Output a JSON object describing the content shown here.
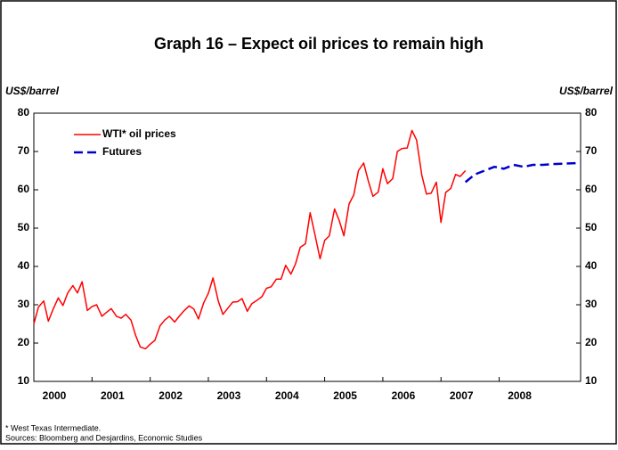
{
  "chart_data": {
    "type": "line",
    "title": "Graph 16 – Expect oil prices to remain high",
    "ylabel": "US$/barrel",
    "y2label": "US$/barrel",
    "legend": "top-left",
    "notes": [
      "* West Texas Intermediate.",
      "Sources: Bloomberg and Desjardins, Economic Studies"
    ],
    "xlim": [
      2000,
      2009.4
    ],
    "xticks": [
      2000,
      2001,
      2002,
      2003,
      2004,
      2005,
      2006,
      2007,
      2008
    ],
    "ylim": [
      10,
      80
    ],
    "yticks": [
      10,
      20,
      30,
      40,
      50,
      60,
      70,
      80
    ],
    "y2lim": [
      10,
      80
    ],
    "y2ticks": [
      10,
      20,
      30,
      40,
      50,
      60,
      70,
      80
    ],
    "series": [
      {
        "name": "WTI* oil prices",
        "color": "#ff0000",
        "x": [
          2000,
          2000.08,
          2000.17,
          2000.25,
          2000.33,
          2000.42,
          2000.5,
          2000.58,
          2000.67,
          2000.75,
          2000.83,
          2000.92,
          2001,
          2001.08,
          2001.17,
          2001.25,
          2001.33,
          2001.42,
          2001.5,
          2001.58,
          2001.67,
          2001.75,
          2001.83,
          2001.92,
          2002,
          2002.08,
          2002.17,
          2002.25,
          2002.33,
          2002.42,
          2002.5,
          2002.58,
          2002.67,
          2002.75,
          2002.83,
          2002.92,
          2003,
          2003.08,
          2003.17,
          2003.25,
          2003.33,
          2003.42,
          2003.5,
          2003.58,
          2003.67,
          2003.75,
          2003.83,
          2003.92,
          2004,
          2004.08,
          2004.17,
          2004.25,
          2004.33,
          2004.42,
          2004.5,
          2004.58,
          2004.67,
          2004.75,
          2004.83,
          2004.92,
          2005,
          2005.08,
          2005.17,
          2005.25,
          2005.33,
          2005.42,
          2005.5,
          2005.58,
          2005.67,
          2005.75,
          2005.83,
          2005.92,
          2006,
          2006.08,
          2006.17,
          2006.25,
          2006.33,
          2006.42,
          2006.5,
          2006.58,
          2006.67,
          2006.75,
          2006.83,
          2006.92,
          2007,
          2007.08,
          2007.17,
          2007.25,
          2007.33,
          2007.42
        ],
        "values": [
          25,
          29.4,
          31,
          25.7,
          28.8,
          31.8,
          29.8,
          33,
          35,
          33.1,
          36,
          28.5,
          29.5,
          30,
          27,
          28,
          29,
          27,
          26.5,
          27.5,
          26,
          22,
          19,
          18.5,
          19.7,
          20.7,
          24.5,
          26,
          27,
          25.5,
          27,
          28.4,
          29.7,
          28.9,
          26.3,
          30.5,
          33,
          37,
          31,
          27.5,
          29,
          30.7,
          30.8,
          31.6,
          28.3,
          30.3,
          31.1,
          32.1,
          34.3,
          34.7,
          36.7,
          36.7,
          40.3,
          38,
          40.7,
          45,
          45.9,
          54,
          48.5,
          42,
          46.8,
          48,
          55,
          52,
          48,
          56.3,
          58.7,
          65,
          67,
          62.3,
          58.3,
          59.4,
          65.5,
          61.6,
          62.9,
          70,
          70.8,
          70.9,
          75.5,
          73,
          63.8,
          58.9,
          59.1,
          62,
          51.5,
          59.3,
          60.4,
          64,
          63.5,
          65
        ]
      },
      {
        "name": "Futures",
        "color": "#0000cc",
        "x": [
          2007.42,
          2007.58,
          2007.75,
          2007.92,
          2008.08,
          2008.25,
          2008.42,
          2008.58,
          2008.75,
          2008.92,
          2009.08,
          2009.25,
          2009.4
        ],
        "values": [
          62,
          64,
          65,
          66,
          65.5,
          66.5,
          66,
          66.5,
          66.5,
          66.7,
          66.8,
          66.9,
          67
        ]
      }
    ]
  }
}
